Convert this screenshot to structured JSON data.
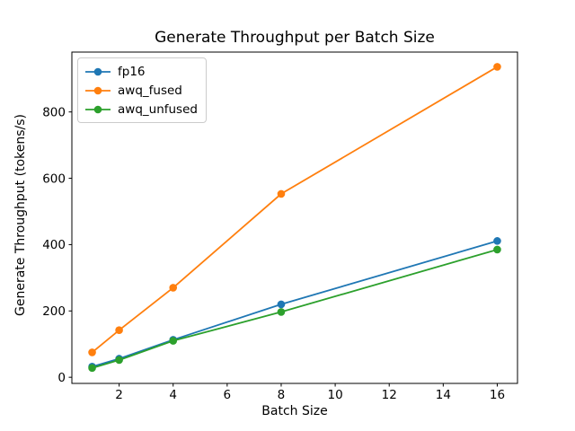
{
  "chart_data": {
    "type": "line",
    "title": "Generate Throughput per Batch Size",
    "xlabel": "Batch Size",
    "ylabel": "Generate Throughput (tokens/s)",
    "x": [
      1,
      2,
      4,
      8,
      16
    ],
    "series": [
      {
        "name": "fp16",
        "color": "#1f77b4",
        "values": [
          32,
          56,
          113,
          220,
          411
        ]
      },
      {
        "name": "awq_fused",
        "color": "#ff7f0e",
        "values": [
          75,
          142,
          270,
          553,
          936
        ]
      },
      {
        "name": "awq_unfused",
        "color": "#2ca02c",
        "values": [
          28,
          52,
          110,
          197,
          385
        ]
      }
    ],
    "xticks": [
      2,
      4,
      6,
      8,
      10,
      12,
      14,
      16
    ],
    "yticks": [
      0,
      200,
      400,
      600,
      800
    ],
    "xlim": [
      0.25,
      16.75
    ],
    "ylim": [
      -18.5,
      980.5
    ],
    "grid": false,
    "legend_position": "upper left",
    "marker": "circle",
    "axis_color": "#000000",
    "background_color": "#ffffff"
  }
}
